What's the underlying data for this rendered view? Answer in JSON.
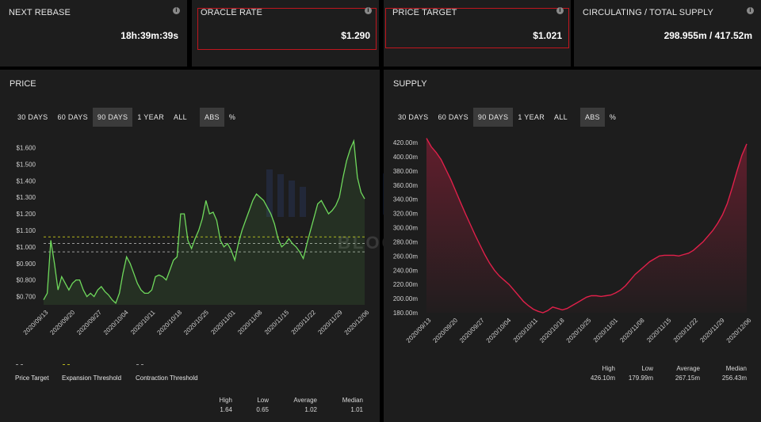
{
  "stats_cards": [
    {
      "label": "NEXT REBASE",
      "value": "18h:39m:39s"
    },
    {
      "label": "ORACLE RATE",
      "value": "$1.290"
    },
    {
      "label": "PRICE TARGET",
      "value": "$1.021"
    },
    {
      "label": "CIRCULATING / TOTAL SUPPLY",
      "value": "298.955m / 417.52m"
    }
  ],
  "info_icon_glyph": "i",
  "price_panel": {
    "title": "PRICE",
    "range_buttons": [
      "30 DAYS",
      "60 DAYS",
      "90 DAYS",
      "1 YEAR",
      "ALL"
    ],
    "active_range": "90 DAYS",
    "mode_buttons": [
      "ABS",
      "%"
    ],
    "active_mode": "ABS",
    "legend": [
      "Price Target",
      "Expansion Threshold",
      "Contraction Threshold"
    ],
    "stats": [
      {
        "label": "High",
        "value": "1.64"
      },
      {
        "label": "Low",
        "value": "0.65"
      },
      {
        "label": "Average",
        "value": "1.02"
      },
      {
        "label": "Median",
        "value": "1.01"
      }
    ]
  },
  "supply_panel": {
    "title": "SUPPLY",
    "range_buttons": [
      "30 DAYS",
      "60 DAYS",
      "90 DAYS",
      "1 YEAR",
      "ALL"
    ],
    "active_range": "90 DAYS",
    "mode_buttons": [
      "ABS",
      "%"
    ],
    "active_mode": "ABS",
    "stats": [
      {
        "label": "High",
        "value": "426.10m"
      },
      {
        "label": "Low",
        "value": "179.99m"
      },
      {
        "label": "Average",
        "value": "267.15m"
      },
      {
        "label": "Median",
        "value": "256.43m"
      }
    ]
  },
  "watermark": "BLOCKBEATS",
  "colors": {
    "price_line": "#6fd95c",
    "supply_line": "#e0204a",
    "highlight": "#c0161e",
    "target_line": "#9a9a9a",
    "expansion_line": "#b6b61c",
    "contraction_line": "#9a9a9a"
  },
  "chart_data": [
    {
      "type": "line",
      "title": "PRICE",
      "x_tick_labels": [
        "2020/09/13",
        "2020/09/20",
        "2020/09/27",
        "2020/10/04",
        "2020/10/11",
        "2020/10/18",
        "2020/10/25",
        "2020/11/01",
        "2020/11/08",
        "2020/11/15",
        "2020/11/22",
        "2020/11/29",
        "2020/12/06"
      ],
      "y_tick_labels": [
        "$0.700",
        "$0.800",
        "$0.900",
        "$1.000",
        "$1.100",
        "$1.200",
        "$1.300",
        "$1.400",
        "$1.500",
        "$1.600"
      ],
      "ylim": [
        0.65,
        1.65
      ],
      "series": [
        {
          "name": "Price",
          "values": [
            0.68,
            0.72,
            1.04,
            0.9,
            0.74,
            0.82,
            0.78,
            0.74,
            0.78,
            0.8,
            0.8,
            0.74,
            0.7,
            0.72,
            0.7,
            0.74,
            0.76,
            0.73,
            0.71,
            0.68,
            0.66,
            0.72,
            0.84,
            0.94,
            0.9,
            0.84,
            0.78,
            0.74,
            0.72,
            0.72,
            0.74,
            0.82,
            0.83,
            0.82,
            0.8,
            0.86,
            0.92,
            0.94,
            1.2,
            1.2,
            1.04,
            0.99,
            1.05,
            1.1,
            1.17,
            1.28,
            1.2,
            1.21,
            1.16,
            1.04,
            1.0,
            1.02,
            0.98,
            0.92,
            1.02,
            1.1,
            1.16,
            1.22,
            1.28,
            1.32,
            1.3,
            1.28,
            1.24,
            1.2,
            1.14,
            1.05,
            1.0,
            1.02,
            1.05,
            1.02,
            1.0,
            0.97,
            0.93,
            1.02,
            1.1,
            1.18,
            1.26,
            1.28,
            1.24,
            1.2,
            1.22,
            1.25,
            1.3,
            1.42,
            1.52,
            1.59,
            1.64,
            1.42,
            1.33,
            1.29
          ]
        }
      ],
      "reference_lines": [
        {
          "name": "Expansion Threshold",
          "value": 1.06
        },
        {
          "name": "Price Target",
          "value": 1.021
        },
        {
          "name": "Contraction Threshold",
          "value": 0.97
        }
      ]
    },
    {
      "type": "area",
      "title": "SUPPLY",
      "x_tick_labels": [
        "2020/09/13",
        "2020/09/20",
        "2020/09/27",
        "2020/10/04",
        "2020/10/11",
        "2020/10/18",
        "2020/10/25",
        "2020/11/01",
        "2020/11/08",
        "2020/11/15",
        "2020/11/22",
        "2020/11/29",
        "2020/12/06"
      ],
      "y_tick_labels": [
        "180.00m",
        "200.00m",
        "220.00m",
        "240.00m",
        "260.00m",
        "280.00m",
        "300.00m",
        "320.00m",
        "340.00m",
        "360.00m",
        "380.00m",
        "400.00m",
        "420.00m"
      ],
      "ylim": [
        180,
        420
      ],
      "series": [
        {
          "name": "Supply",
          "values": [
            426,
            414,
            406,
            396,
            382,
            368,
            352,
            336,
            320,
            305,
            290,
            276,
            262,
            250,
            240,
            232,
            226,
            220,
            212,
            204,
            196,
            190,
            185,
            182,
            180,
            183,
            188,
            186,
            184,
            186,
            190,
            194,
            198,
            202,
            204,
            204,
            203,
            204,
            205,
            208,
            212,
            218,
            226,
            234,
            240,
            246,
            252,
            256,
            260,
            261,
            261,
            261,
            260,
            262,
            264,
            268,
            274,
            280,
            288,
            296,
            306,
            318,
            334,
            356,
            380,
            402,
            418
          ]
        }
      ]
    }
  ]
}
